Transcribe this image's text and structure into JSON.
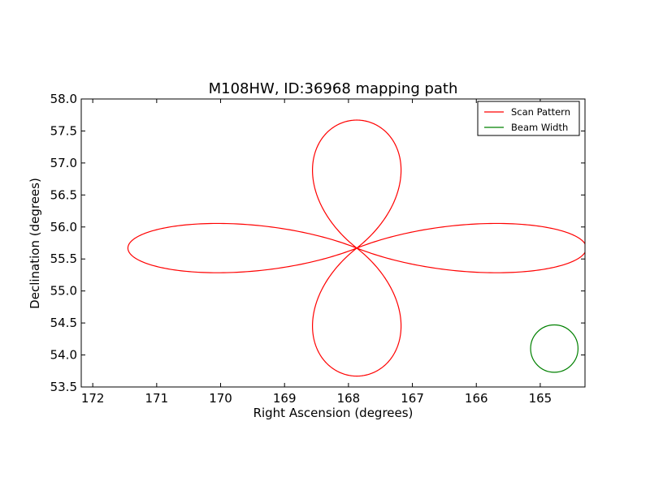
{
  "chart_data": {
    "type": "line",
    "title": "M108HW, ID:36968 mapping path",
    "xlabel": "Right Ascension (degrees)",
    "ylabel": "Declination (degrees)",
    "xlim": [
      172.18,
      164.3
    ],
    "ylim": [
      53.5,
      58.0
    ],
    "x_axis_inverted": true,
    "xticks": [
      172,
      171,
      170,
      169,
      168,
      167,
      166,
      165
    ],
    "yticks": [
      53.5,
      54.0,
      54.5,
      55.0,
      55.5,
      56.0,
      56.5,
      57.0,
      57.5,
      58.0
    ],
    "xtick_labels": [
      "172",
      "171",
      "170",
      "169",
      "168",
      "167",
      "166",
      "165"
    ],
    "ytick_labels": [
      "53.5",
      "54.0",
      "54.5",
      "55.0",
      "55.5",
      "56.0",
      "56.5",
      "57.0",
      "57.5",
      "58.0"
    ],
    "grid": false,
    "legend_position": "top-right",
    "series": [
      {
        "name": "Scan Pattern",
        "color": "#ff0000",
        "center": [
          167.87,
          55.67
        ],
        "lobes": [
          {
            "direction": "north",
            "extent": 57.67,
            "ra_range": [
              168.85,
              166.89
            ]
          },
          {
            "direction": "south",
            "extent": 53.67,
            "ra_range": [
              168.85,
              166.89
            ]
          },
          {
            "direction": "east",
            "extent": 171.45,
            "dec_range": [
              55.12,
              56.21
            ]
          },
          {
            "direction": "west",
            "extent": 164.28,
            "dec_range": [
              55.12,
              56.21
            ]
          }
        ]
      },
      {
        "name": "Beam Width",
        "color": "#008000",
        "center": [
          164.78,
          54.1
        ],
        "radius_deg_dec": 0.37
      }
    ]
  }
}
